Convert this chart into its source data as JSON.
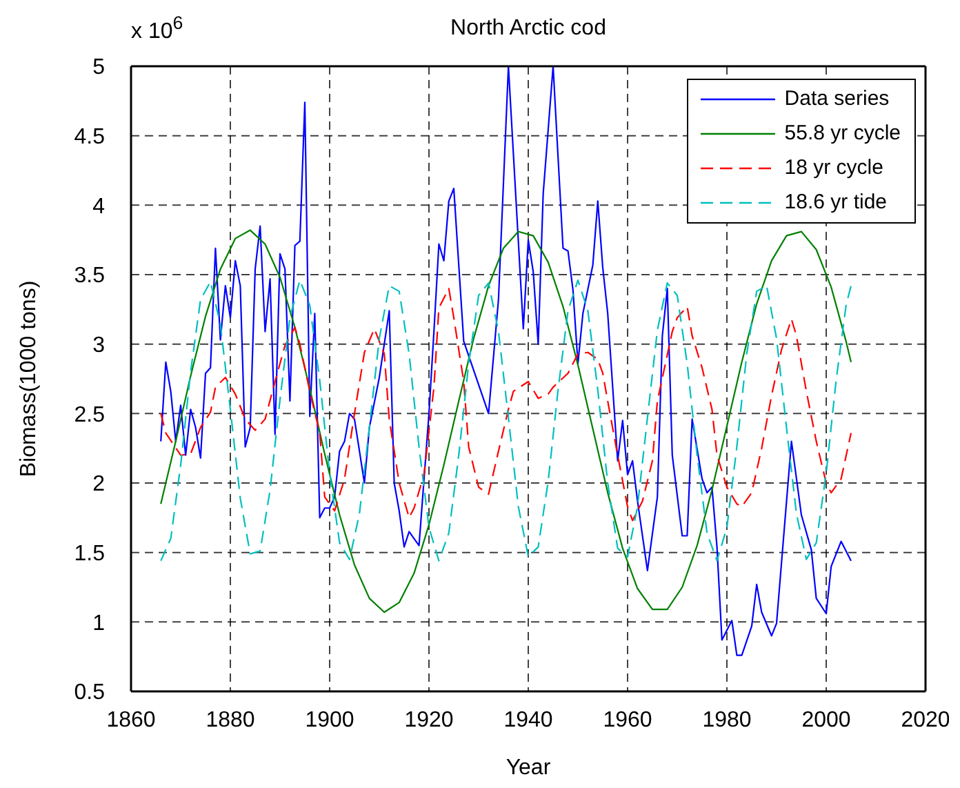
{
  "chart_data": {
    "type": "line",
    "title": "North Arctic cod",
    "xlabel": "Year",
    "ylabel": "Biomass(1000 tons)",
    "annotations": [
      "x 10$^{6}$"
    ],
    "xlim": [
      1860,
      2020
    ],
    "xticks": [
      1860,
      1880,
      1900,
      1920,
      1940,
      1960,
      1980,
      2000,
      2020
    ],
    "ylim": [
      0.5,
      5
    ],
    "yticks": [
      0.5,
      1,
      1.5,
      2,
      2.5,
      3,
      3.5,
      4,
      4.5,
      5
    ],
    "grid": true,
    "legend": "top right",
    "series": [
      {
        "name": "Data series",
        "color": "#0000ff",
        "line_style": "solid",
        "x": [
          1866,
          1867,
          1868,
          1869,
          1870,
          1871,
          1872,
          1873,
          1874,
          1875,
          1876,
          1877,
          1878,
          1879,
          1880,
          1881,
          1882,
          1883,
          1884,
          1885,
          1886,
          1887,
          1888,
          1889,
          1890,
          1891,
          1892,
          1893,
          1894,
          1895,
          1896,
          1897,
          1898,
          1899,
          1900,
          1901,
          1902,
          1903,
          1904,
          1905,
          1907,
          1908,
          1910,
          1912,
          1913,
          1914,
          1915,
          1916,
          1917,
          1918,
          1920,
          1921,
          1922,
          1923,
          1924,
          1925,
          1927,
          1932,
          1934,
          1936,
          1939,
          1940,
          1941,
          1942,
          1943,
          1945,
          1947,
          1948,
          1949,
          1950,
          1951,
          1953,
          1954,
          1955,
          1956,
          1958,
          1959,
          1960,
          1961,
          1962,
          1964,
          1966,
          1967,
          1968,
          1969,
          1971,
          1972,
          1973,
          1975,
          1976,
          1977,
          1978,
          1979,
          1981,
          1982,
          1983,
          1985,
          1986,
          1987,
          1989,
          1990,
          1993,
          1995,
          1997,
          1998,
          2000,
          2001,
          2003,
          2005
        ],
        "values": [
          2.3,
          2.87,
          2.66,
          2.3,
          2.56,
          2.2,
          2.53,
          2.4,
          2.18,
          2.79,
          2.83,
          3.69,
          3.03,
          3.42,
          3.19,
          3.6,
          3.42,
          2.26,
          2.4,
          3.54,
          3.85,
          3.09,
          3.47,
          2.35,
          3.65,
          3.54,
          2.59,
          3.71,
          3.74,
          4.74,
          2.48,
          3.22,
          1.75,
          1.82,
          1.82,
          1.9,
          2.23,
          2.3,
          2.5,
          2.46,
          2.0,
          2.4,
          2.76,
          3.24,
          2.0,
          1.8,
          1.54,
          1.65,
          1.6,
          1.55,
          2.5,
          3.09,
          3.72,
          3.6,
          4.03,
          4.12,
          3.02,
          2.5,
          3.32,
          5.0,
          3.11,
          3.75,
          3.52,
          3.0,
          4.08,
          5.0,
          3.69,
          3.67,
          3.39,
          2.86,
          3.22,
          3.57,
          4.03,
          3.55,
          3.22,
          2.16,
          2.45,
          2.06,
          2.16,
          1.87,
          1.37,
          1.9,
          3.06,
          3.4,
          2.2,
          1.62,
          1.62,
          2.46,
          2.03,
          1.93,
          1.97,
          1.54,
          0.87,
          1.01,
          0.76,
          0.76,
          0.97,
          1.27,
          1.07,
          0.9,
          0.99,
          2.3,
          1.77,
          1.52,
          1.17,
          1.06,
          1.4,
          1.58,
          1.44
        ]
      },
      {
        "name": "55.8 yr cycle",
        "color": "#008000",
        "line_style": "solid",
        "x": [
          1866,
          1869,
          1872,
          1875,
          1878,
          1881,
          1884,
          1887,
          1890,
          1893,
          1896,
          1899,
          1902,
          1905,
          1908,
          1911,
          1914,
          1917,
          1920,
          1923,
          1926,
          1929,
          1932,
          1935,
          1938,
          1941,
          1944,
          1947,
          1950,
          1953,
          1956,
          1959,
          1962,
          1965,
          1968,
          1971,
          1974,
          1977,
          1980,
          1983,
          1986,
          1989,
          1992,
          1995,
          1998,
          2001,
          2004,
          2005
        ],
        "values": [
          1.85,
          2.3,
          2.77,
          3.2,
          3.54,
          3.76,
          3.82,
          3.72,
          3.48,
          3.12,
          2.68,
          2.21,
          1.77,
          1.41,
          1.17,
          1.07,
          1.14,
          1.35,
          1.7,
          2.13,
          2.59,
          3.04,
          3.42,
          3.69,
          3.81,
          3.78,
          3.59,
          3.27,
          2.85,
          2.39,
          1.93,
          1.53,
          1.24,
          1.09,
          1.09,
          1.25,
          1.55,
          1.95,
          2.41,
          2.87,
          3.29,
          3.6,
          3.78,
          3.81,
          3.68,
          3.41,
          3.02,
          2.87
        ]
      },
      {
        "name": "18 yr cycle",
        "color": "#ff0000",
        "line_style": "dashed",
        "x": [
          1866,
          1867,
          1870,
          1872,
          1874,
          1876,
          1877,
          1879,
          1881,
          1883,
          1885,
          1887,
          1889,
          1891,
          1893,
          1894,
          1896,
          1898,
          1899,
          1901,
          1903,
          1905,
          1907,
          1909,
          1911,
          1912,
          1914,
          1916,
          1917,
          1919,
          1921,
          1922,
          1924,
          1925,
          1927,
          1928,
          1930,
          1932,
          1934,
          1936,
          1937,
          1940,
          1942,
          1944,
          1945,
          1948,
          1950,
          1952,
          1954,
          1955,
          1956,
          1958,
          1960,
          1961,
          1963,
          1965,
          1966,
          1969,
          1970,
          1972,
          1973,
          1975,
          1977,
          1978,
          1980,
          1982,
          1983,
          1985,
          1987,
          1989,
          1991,
          1993,
          1994,
          1996,
          1998,
          2000,
          2001,
          2003,
          2005
        ],
        "values": [
          2.5,
          2.36,
          2.2,
          2.21,
          2.4,
          2.51,
          2.69,
          2.76,
          2.64,
          2.46,
          2.38,
          2.46,
          2.73,
          2.99,
          3.12,
          3.0,
          2.66,
          2.36,
          1.9,
          1.8,
          2.03,
          2.5,
          2.94,
          3.11,
          2.93,
          2.46,
          2.0,
          1.75,
          1.82,
          2.06,
          2.69,
          3.26,
          3.4,
          3.19,
          2.73,
          2.26,
          1.97,
          1.92,
          2.23,
          2.53,
          2.66,
          2.73,
          2.61,
          2.64,
          2.69,
          2.79,
          2.93,
          2.94,
          2.89,
          2.79,
          2.59,
          2.2,
          1.83,
          1.73,
          1.87,
          2.16,
          2.59,
          3.09,
          3.19,
          3.27,
          3.06,
          2.83,
          2.53,
          2.2,
          1.97,
          1.85,
          1.83,
          1.93,
          2.25,
          2.63,
          2.96,
          3.18,
          3.06,
          2.66,
          2.3,
          2.0,
          1.93,
          2.03,
          2.36
        ]
      },
      {
        "name": "18.6 yr tide",
        "color": "#00bfbf",
        "line_style": "dashed",
        "x": [
          1866,
          1868,
          1870,
          1872,
          1874,
          1876,
          1878,
          1880,
          1882,
          1884,
          1886,
          1888,
          1890,
          1892,
          1894,
          1896,
          1898,
          1900,
          1902,
          1904,
          1906,
          1908,
          1910,
          1912,
          1914,
          1916,
          1918,
          1920,
          1922,
          1924,
          1926,
          1928,
          1930,
          1932,
          1934,
          1936,
          1938,
          1940,
          1942,
          1944,
          1946,
          1948,
          1950,
          1952,
          1954,
          1956,
          1958,
          1960,
          1962,
          1964,
          1966,
          1968,
          1970,
          1972,
          1974,
          1976,
          1978,
          1980,
          1982,
          1984,
          1986,
          1988,
          1990,
          1992,
          1994,
          1996,
          1998,
          2000,
          2002,
          2004,
          2005
        ],
        "values": [
          1.44,
          1.6,
          2.13,
          2.8,
          3.32,
          3.45,
          3.14,
          2.53,
          1.89,
          1.49,
          1.51,
          1.95,
          2.6,
          3.19,
          3.46,
          3.28,
          2.74,
          2.07,
          1.57,
          1.45,
          1.78,
          2.4,
          3.04,
          3.42,
          3.38,
          2.93,
          2.26,
          1.68,
          1.44,
          1.64,
          2.2,
          2.86,
          3.35,
          3.44,
          3.09,
          2.47,
          1.83,
          1.47,
          1.54,
          2.01,
          2.67,
          3.24,
          3.46,
          3.24,
          2.67,
          2.0,
          1.53,
          1.47,
          1.83,
          2.47,
          3.1,
          3.44,
          3.35,
          2.86,
          2.2,
          1.64,
          1.44,
          1.68,
          2.26,
          2.93,
          3.38,
          3.42,
          3.04,
          2.4,
          1.78,
          1.45,
          1.57,
          2.07,
          2.74,
          3.28,
          3.42
        ]
      }
    ]
  }
}
